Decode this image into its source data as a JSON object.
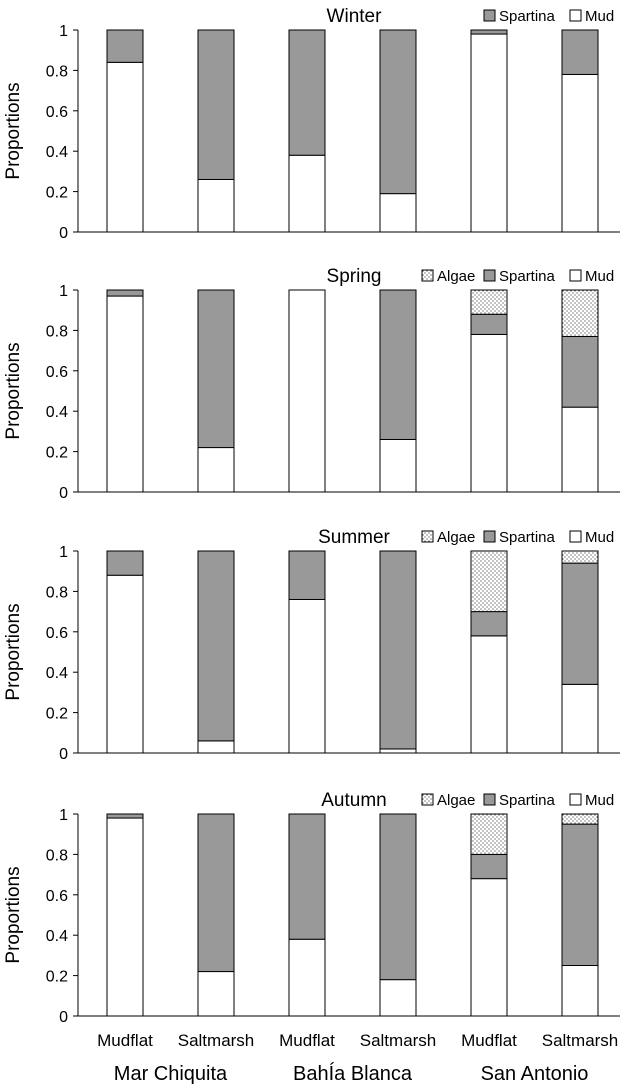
{
  "chart_data": {
    "type": "bar",
    "stacked": true,
    "ylabel": "Proportions",
    "ylim": [
      0,
      1
    ],
    "yticks": [
      "0",
      "0.2",
      "0.4",
      "0.6",
      "0.8",
      "1"
    ],
    "x_tick_labels": [
      "Mudflat",
      "Saltmarsh",
      "Mudflat",
      "Saltmarsh",
      "Mudflat",
      "Saltmarsh"
    ],
    "site_labels": [
      "Mar Chiquita",
      "BahÍa Blanca",
      "San Antonio"
    ],
    "colors": {
      "Mud": "#ffffff",
      "Spartina": "#999999",
      "Algae": "dotted"
    },
    "panels": [
      {
        "title": "Winter",
        "legend": [
          "Spartina",
          "Mud"
        ],
        "series": [
          {
            "name": "Mud",
            "values": [
              0.84,
              0.26,
              0.38,
              0.19,
              0.98,
              0.78
            ]
          },
          {
            "name": "Spartina",
            "values": [
              0.16,
              0.74,
              0.62,
              0.81,
              0.02,
              0.22
            ]
          }
        ]
      },
      {
        "title": "Spring",
        "legend": [
          "Algae",
          "Spartina",
          "Mud"
        ],
        "series": [
          {
            "name": "Mud",
            "values": [
              0.97,
              0.22,
              1.0,
              0.26,
              0.78,
              0.42
            ]
          },
          {
            "name": "Spartina",
            "values": [
              0.03,
              0.78,
              0.0,
              0.74,
              0.1,
              0.35
            ]
          },
          {
            "name": "Algae",
            "values": [
              0.0,
              0.0,
              0.0,
              0.0,
              0.12,
              0.23
            ]
          }
        ]
      },
      {
        "title": "Summer",
        "legend": [
          "Algae",
          "Spartina",
          "Mud"
        ],
        "series": [
          {
            "name": "Mud",
            "values": [
              0.88,
              0.06,
              0.76,
              0.02,
              0.58,
              0.34
            ]
          },
          {
            "name": "Spartina",
            "values": [
              0.12,
              0.94,
              0.24,
              0.98,
              0.12,
              0.6
            ]
          },
          {
            "name": "Algae",
            "values": [
              0.0,
              0.0,
              0.0,
              0.0,
              0.3,
              0.06
            ]
          }
        ]
      },
      {
        "title": "Autumn",
        "legend": [
          "Algae",
          "Spartina",
          "Mud"
        ],
        "series": [
          {
            "name": "Mud",
            "values": [
              0.98,
              0.22,
              0.38,
              0.18,
              0.68,
              0.25
            ]
          },
          {
            "name": "Spartina",
            "values": [
              0.02,
              0.78,
              0.62,
              0.82,
              0.12,
              0.7
            ]
          },
          {
            "name": "Algae",
            "values": [
              0.0,
              0.0,
              0.0,
              0.0,
              0.2,
              0.05
            ]
          }
        ]
      }
    ]
  }
}
